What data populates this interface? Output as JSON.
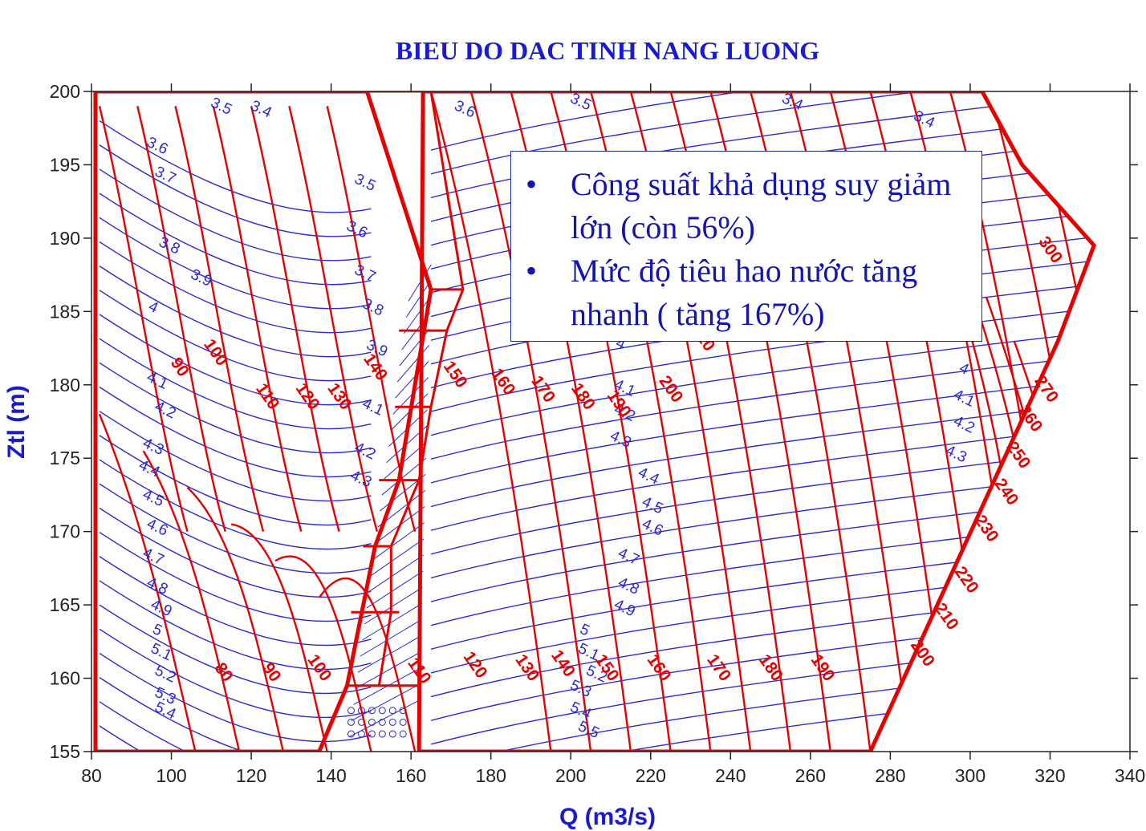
{
  "chart_data": {
    "type": "line",
    "title": "BIEU DO DAC TINH NANG LUONG",
    "xlabel": "Q (m3/s)",
    "ylabel": "Ztl (m)",
    "xlim": [
      80,
      340
    ],
    "ylim": [
      155,
      200
    ],
    "xticks": [
      80,
      100,
      120,
      140,
      160,
      180,
      200,
      220,
      240,
      260,
      280,
      300,
      320,
      340
    ],
    "yticks": [
      155,
      160,
      165,
      170,
      175,
      180,
      185,
      190,
      195,
      200
    ],
    "colors": {
      "efficiency": "#2a2ad0",
      "power": "#e60000",
      "axis": "#222222",
      "title": "#1a1ad6"
    },
    "grid": false,
    "boundary": [
      [
        81,
        155
      ],
      [
        81,
        200
      ],
      [
        149,
        200
      ],
      [
        165,
        186.5
      ],
      [
        157,
        173.5
      ],
      [
        151,
        169
      ],
      [
        144,
        159.5
      ],
      [
        137,
        155
      ]
    ],
    "boundary_right": [
      [
        163,
        200
      ],
      [
        303,
        200
      ],
      [
        313,
        195
      ],
      [
        331,
        189.5
      ],
      [
        322,
        183
      ],
      [
        275,
        155
      ],
      [
        162,
        155
      ]
    ],
    "efficiency_labels": [
      {
        "v": "3.4",
        "x": 122,
        "y": 198.5
      },
      {
        "v": "3.5",
        "x": 112,
        "y": 198.7
      },
      {
        "v": "3.6",
        "x": 96,
        "y": 196
      },
      {
        "v": "3.7",
        "x": 98,
        "y": 194
      },
      {
        "v": "3.8",
        "x": 99,
        "y": 189.2
      },
      {
        "v": "3.9",
        "x": 107,
        "y": 187
      },
      {
        "v": "4",
        "x": 95,
        "y": 185
      },
      {
        "v": "4.1",
        "x": 96,
        "y": 180
      },
      {
        "v": "4.2",
        "x": 98,
        "y": 178
      },
      {
        "v": "4.3",
        "x": 95,
        "y": 175.5
      },
      {
        "v": "4.4",
        "x": 94,
        "y": 174
      },
      {
        "v": "4.5",
        "x": 95,
        "y": 172
      },
      {
        "v": "4.6",
        "x": 96,
        "y": 170
      },
      {
        "v": "4.7",
        "x": 95,
        "y": 168
      },
      {
        "v": "4.8",
        "x": 96,
        "y": 166
      },
      {
        "v": "4.9",
        "x": 97,
        "y": 164.5
      },
      {
        "v": "5",
        "x": 96,
        "y": 163
      },
      {
        "v": "5.1",
        "x": 97,
        "y": 161.5
      },
      {
        "v": "5.2",
        "x": 98,
        "y": 160
      },
      {
        "v": "5.3",
        "x": 98,
        "y": 158.5
      },
      {
        "v": "5.4",
        "x": 98,
        "y": 157.5
      },
      {
        "v": "3.5",
        "x": 148,
        "y": 193.5
      },
      {
        "v": "3.6",
        "x": 146,
        "y": 190.3
      },
      {
        "v": "3.7",
        "x": 148,
        "y": 187.3
      },
      {
        "v": "3.8",
        "x": 150,
        "y": 185
      },
      {
        "v": "3.9",
        "x": 151,
        "y": 182.2
      },
      {
        "v": "4.1",
        "x": 150,
        "y": 178.2
      },
      {
        "v": "4.2",
        "x": 148,
        "y": 175.2
      },
      {
        "v": "4.3",
        "x": 147,
        "y": 173.3
      },
      {
        "v": "3.6",
        "x": 173,
        "y": 198.5
      },
      {
        "v": "3.5",
        "x": 202,
        "y": 199
      },
      {
        "v": "3.4",
        "x": 255,
        "y": 199
      },
      {
        "v": "3.4",
        "x": 288,
        "y": 197.8
      },
      {
        "v": "4",
        "x": 212,
        "y": 182.5
      },
      {
        "v": "4.1",
        "x": 213,
        "y": 179.5
      },
      {
        "v": "4.2",
        "x": 213,
        "y": 177.8
      },
      {
        "v": "4.3",
        "x": 212,
        "y": 176
      },
      {
        "v": "4.4",
        "x": 219,
        "y": 173.5
      },
      {
        "v": "4.5",
        "x": 220,
        "y": 171.5
      },
      {
        "v": "4.6",
        "x": 220,
        "y": 170
      },
      {
        "v": "4.7",
        "x": 214,
        "y": 168
      },
      {
        "v": "4.8",
        "x": 214,
        "y": 166
      },
      {
        "v": "4.9",
        "x": 213,
        "y": 164.5
      },
      {
        "v": "5",
        "x": 203,
        "y": 163
      },
      {
        "v": "5.1",
        "x": 204,
        "y": 161.5
      },
      {
        "v": "5.2",
        "x": 206,
        "y": 160
      },
      {
        "v": "5.3",
        "x": 202,
        "y": 159
      },
      {
        "v": "5.4",
        "x": 202,
        "y": 157.5
      },
      {
        "v": "5.5",
        "x": 204,
        "y": 156.2
      },
      {
        "v": "4",
        "x": 298,
        "y": 180.8
      },
      {
        "v": "4.1",
        "x": 298,
        "y": 178.8
      },
      {
        "v": "4.2",
        "x": 298,
        "y": 177
      },
      {
        "v": "4.3",
        "x": 296,
        "y": 175
      }
    ],
    "power_labels": [
      {
        "v": "90",
        "x": 101,
        "y": 181
      },
      {
        "v": "100",
        "x": 110,
        "y": 182
      },
      {
        "v": "110",
        "x": 123,
        "y": 179
      },
      {
        "v": "120",
        "x": 133,
        "y": 179
      },
      {
        "v": "130",
        "x": 141,
        "y": 179
      },
      {
        "v": "140",
        "x": 150,
        "y": 181
      },
      {
        "v": "150",
        "x": 170,
        "y": 180.5
      },
      {
        "v": "160",
        "x": 182,
        "y": 180
      },
      {
        "v": "170",
        "x": 192,
        "y": 179.5
      },
      {
        "v": "180",
        "x": 202,
        "y": 179
      },
      {
        "v": "190",
        "x": 211,
        "y": 178.5
      },
      {
        "v": "200",
        "x": 224,
        "y": 179.5
      },
      {
        "v": "210",
        "x": 232,
        "y": 183
      },
      {
        "v": "300",
        "x": 319,
        "y": 189
      },
      {
        "v": "270",
        "x": 318,
        "y": 179.5
      },
      {
        "v": "260",
        "x": 314,
        "y": 177.5
      },
      {
        "v": "250",
        "x": 311,
        "y": 175
      },
      {
        "v": "240",
        "x": 308,
        "y": 172.5
      },
      {
        "v": "230",
        "x": 303,
        "y": 170
      },
      {
        "v": "220",
        "x": 298,
        "y": 166.5
      },
      {
        "v": "210",
        "x": 293,
        "y": 164
      },
      {
        "v": "200",
        "x": 287,
        "y": 161.5
      },
      {
        "v": "80",
        "x": 112,
        "y": 160.2
      },
      {
        "v": "90",
        "x": 124,
        "y": 160.2
      },
      {
        "v": "100",
        "x": 136,
        "y": 160.5
      },
      {
        "v": "110",
        "x": 161,
        "y": 160.3
      },
      {
        "v": "120",
        "x": 175,
        "y": 160.7
      },
      {
        "v": "130",
        "x": 188,
        "y": 160.5
      },
      {
        "v": "140",
        "x": 197,
        "y": 160.8
      },
      {
        "v": "150",
        "x": 208,
        "y": 160.5
      },
      {
        "v": "160",
        "x": 221,
        "y": 160.5
      },
      {
        "v": "170",
        "x": 236,
        "y": 160.5
      },
      {
        "v": "180",
        "x": 249,
        "y": 160.5
      },
      {
        "v": "190",
        "x": 262,
        "y": 160.5
      }
    ]
  },
  "note": {
    "bullet": "•",
    "items": [
      "Công suất khả dụng suy giảm lớn (còn 56%)",
      "Mức độ tiêu hao nước tăng nhanh ( tăng 167%)"
    ]
  }
}
